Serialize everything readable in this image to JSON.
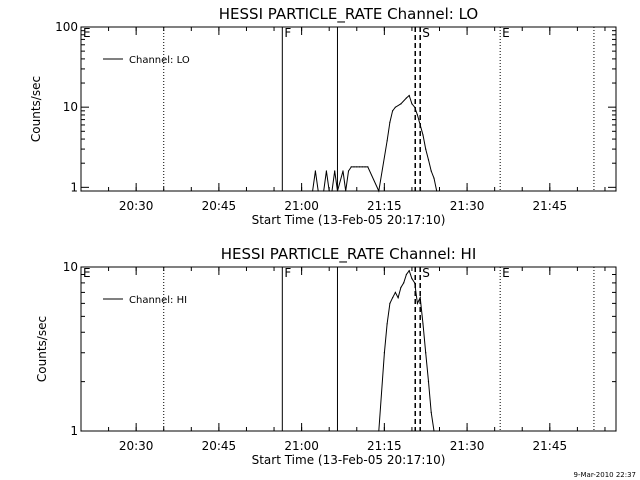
{
  "chart_data": [
    {
      "type": "line",
      "title": "HESSI PARTICLE_RATE Channel: LO",
      "xlabel": "Start Time (13-Feb-05 20:17:10)",
      "ylabel": "Counts/sec",
      "yscale": "log",
      "xlim": [
        "20:20",
        "21:57"
      ],
      "ylim": [
        0.9,
        100
      ],
      "xticks": [
        "20:30",
        "20:45",
        "21:00",
        "21:15",
        "21:30",
        "21:45"
      ],
      "yticks": [
        "1",
        "10",
        "100"
      ],
      "legend": "top-left",
      "grid": false,
      "series": [
        {
          "name": "Channel: LO",
          "color": "#000000",
          "x": [
            "20:20",
            "21:02",
            "21:02.5",
            "21:03",
            "21:04",
            "21:04.5",
            "21:05",
            "21:05.5",
            "21:06",
            "21:06.5",
            "21:07.5",
            "21:08",
            "21:08.5",
            "21:09",
            "21:09.5",
            "21:10",
            "21:10.5",
            "21:11",
            "21:11.5",
            "21:12",
            "21:14",
            "21:15.5",
            "21:16",
            "21:16.5",
            "21:17",
            "21:18",
            "21:19",
            "21:19.5",
            "21:20",
            "21:20.5",
            "21:21",
            "21:21.5",
            "21:22",
            "21:22.5",
            "21:23",
            "21:23.5",
            "21:24",
            "21:24.5",
            "21:57"
          ],
          "y": [
            0.9,
            0.9,
            1.6,
            0.9,
            0.9,
            1.6,
            0.9,
            0.9,
            1.6,
            0.9,
            1.6,
            0.9,
            1.6,
            1.8,
            1.8,
            1.8,
            1.8,
            1.8,
            1.8,
            1.8,
            0.9,
            3.8,
            6.5,
            9,
            10,
            11,
            13,
            14,
            11,
            10,
            8,
            6,
            4.5,
            3,
            2.2,
            1.6,
            1.3,
            0.9,
            0.9
          ]
        }
      ],
      "annotations": [
        {
          "label": "E",
          "x": "20:20",
          "line": "none"
        },
        {
          "label": "",
          "x": "20:35",
          "line": "dotted"
        },
        {
          "label": "F",
          "x": "20:56.5",
          "line": "solid"
        },
        {
          "label": "",
          "x": "21:06.5",
          "line": "solid"
        },
        {
          "label": "S",
          "x": "21:21.5",
          "line": "dashed"
        },
        {
          "label": "",
          "x": "21:20.6",
          "line": "dashed"
        },
        {
          "label": "E",
          "x": "21:36",
          "line": "dotted"
        },
        {
          "label": "",
          "x": "21:53",
          "line": "dotted"
        }
      ]
    },
    {
      "type": "line",
      "title": "HESSI PARTICLE_RATE Channel: HI",
      "xlabel": "Start Time (13-Feb-05 20:17:10)",
      "ylabel": "Counts/sec",
      "yscale": "log",
      "xlim": [
        "20:20",
        "21:57"
      ],
      "ylim": [
        1,
        10
      ],
      "xticks": [
        "20:30",
        "20:45",
        "21:00",
        "21:15",
        "21:30",
        "21:45"
      ],
      "yticks": [
        "1",
        "10"
      ],
      "legend": "top-left",
      "grid": false,
      "series": [
        {
          "name": "Channel: HI",
          "color": "#000000",
          "x": [
            "20:20",
            "21:14",
            "21:15",
            "21:15.5",
            "21:16",
            "21:16.5",
            "21:17",
            "21:17.5",
            "21:18",
            "21:18.5",
            "21:19",
            "21:19.5",
            "21:20",
            "21:20.5",
            "21:21",
            "21:21.5",
            "21:22",
            "21:22.5",
            "21:23",
            "21:23.5",
            "21:24",
            "21:57"
          ],
          "y": [
            0.9,
            0.9,
            3,
            4.5,
            6,
            6.5,
            7,
            6.5,
            7.5,
            8,
            9,
            9.5,
            8.5,
            8,
            6,
            6.5,
            4.5,
            3,
            2,
            1.3,
            0.9,
            0.9
          ]
        }
      ],
      "annotations": [
        {
          "label": "E",
          "x": "20:20",
          "line": "none"
        },
        {
          "label": "",
          "x": "20:35",
          "line": "dotted"
        },
        {
          "label": "F",
          "x": "20:56.5",
          "line": "solid"
        },
        {
          "label": "",
          "x": "21:06.5",
          "line": "solid"
        },
        {
          "label": "S",
          "x": "21:21.5",
          "line": "dashed"
        },
        {
          "label": "",
          "x": "21:20.6",
          "line": "dashed"
        },
        {
          "label": "E",
          "x": "21:36",
          "line": "dotted"
        },
        {
          "label": "",
          "x": "21:53",
          "line": "dotted"
        }
      ]
    }
  ],
  "footer": {
    "timestamp": "9-Mar-2010 22:37"
  }
}
